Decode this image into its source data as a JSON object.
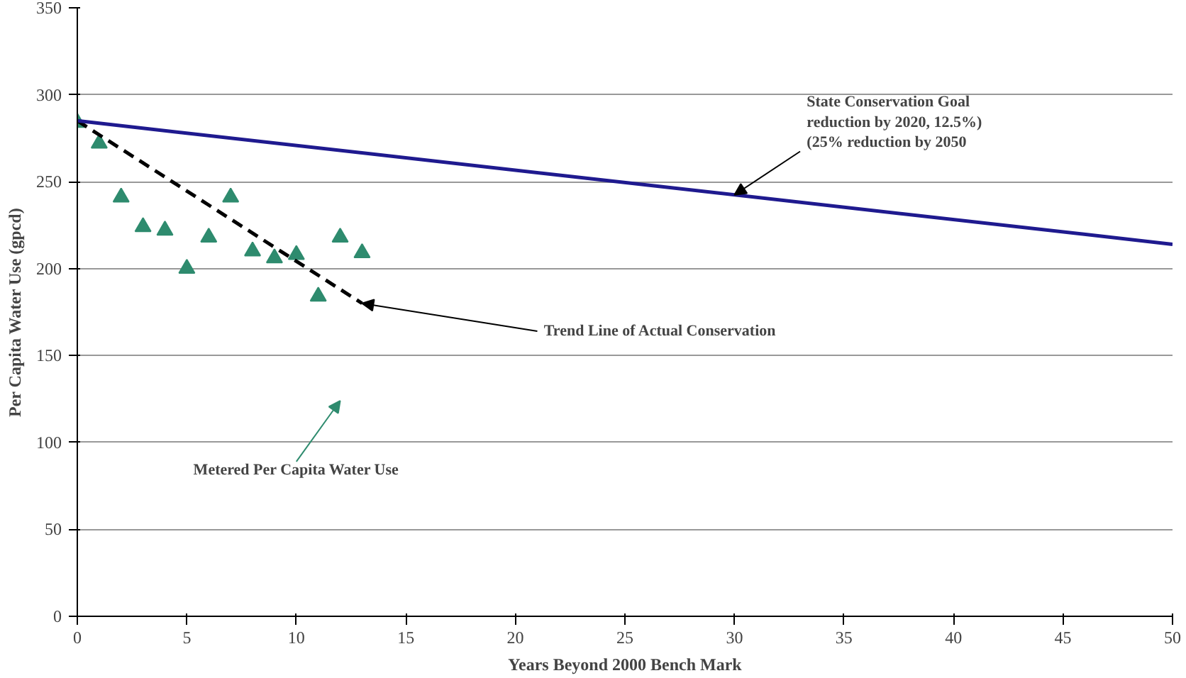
{
  "chart_data": {
    "type": "scatter",
    "xlabel": "Years Beyond 2000 Bench Mark",
    "ylabel": "Per Capita Water Use (gpcd)",
    "xlim": [
      0,
      50
    ],
    "ylim": [
      0,
      350
    ],
    "xticks": [
      0,
      5,
      10,
      15,
      20,
      25,
      30,
      35,
      40,
      45,
      50
    ],
    "yticks": [
      0,
      50,
      100,
      150,
      200,
      250,
      300,
      350
    ],
    "grid": "y",
    "series": [
      {
        "color": "#2e8b6e",
        "marker": "triangle",
        "x": [
          0,
          1,
          2,
          3,
          4,
          5,
          6,
          7,
          8,
          9,
          10,
          11,
          12,
          13
        ],
        "values": [
          284,
          272,
          241,
          224,
          222,
          200,
          218,
          241,
          210,
          206,
          208,
          184,
          218,
          209
        ]
      },
      {
        "type": "line",
        "color": "#000000",
        "line_style": "dashed",
        "x": [
          0,
          13
        ],
        "values": [
          285,
          180
        ]
      },
      {
        "type": "line",
        "color": "#1f1a8f",
        "line_style": "solid",
        "x": [
          0,
          50
        ],
        "values": [
          285,
          214
        ]
      }
    ],
    "annotations": [
      {
        "text": "State Conservation Goal\nreduction by 2020, 12.5%)\n(25% reduction by 2050",
        "x": 30,
        "y": 242.4
      },
      {
        "text": "Trend Line of Actual Conservation",
        "x": 13,
        "y": 180
      },
      "Metered Per Capita Water Use"
    ]
  }
}
